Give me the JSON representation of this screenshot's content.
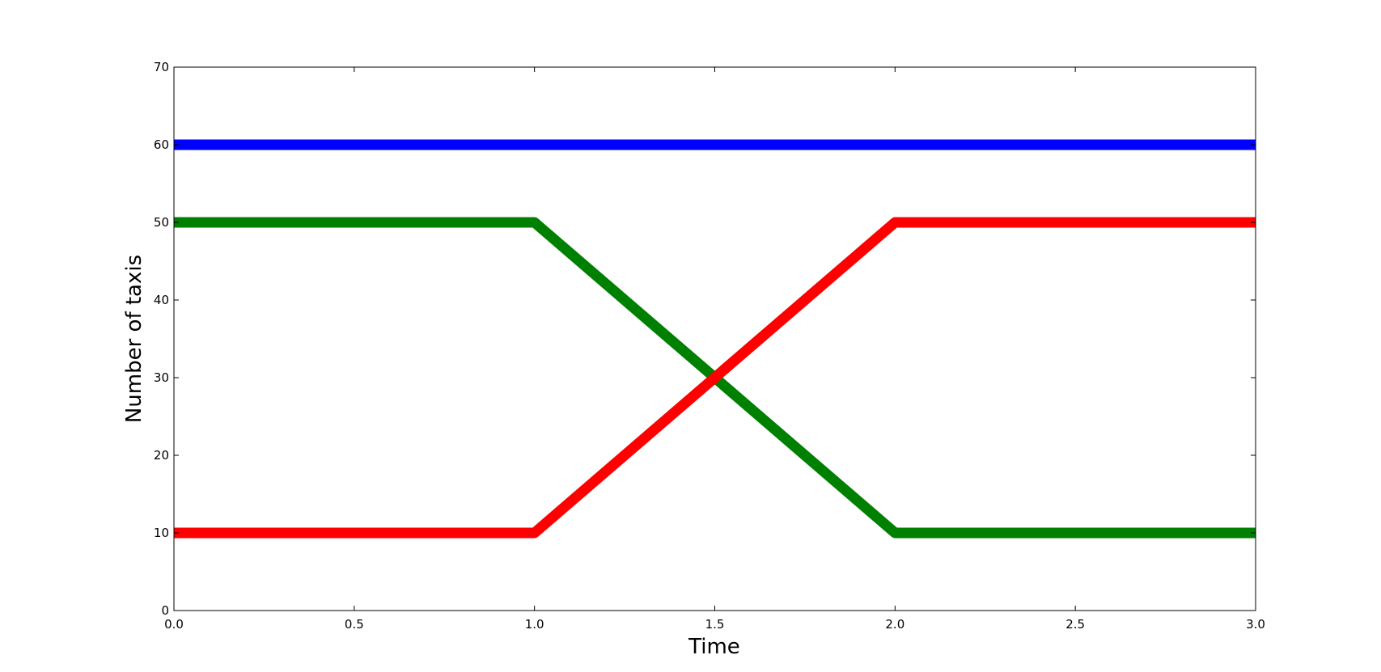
{
  "chart_data": {
    "type": "line",
    "title": "",
    "xlabel": "Time",
    "ylabel": "Number of taxis",
    "xlim": [
      0.0,
      3.0
    ],
    "ylim": [
      0,
      70
    ],
    "xticks": [
      "0.0",
      "0.5",
      "1.0",
      "1.5",
      "2.0",
      "2.5",
      "3.0"
    ],
    "yticks": [
      "0",
      "10",
      "20",
      "30",
      "40",
      "50",
      "60",
      "70"
    ],
    "grid": false,
    "legend": "none",
    "series": [
      {
        "color": "#0000ff",
        "x": [
          0.0,
          3.0
        ],
        "y": [
          60,
          60
        ]
      },
      {
        "color": "#008000",
        "x": [
          0.0,
          1.0,
          2.0,
          3.0
        ],
        "y": [
          50,
          50,
          10,
          10
        ]
      },
      {
        "color": "#ff0000",
        "x": [
          0.0,
          1.0,
          2.0,
          3.0
        ],
        "y": [
          10,
          10,
          50,
          50
        ]
      }
    ]
  }
}
